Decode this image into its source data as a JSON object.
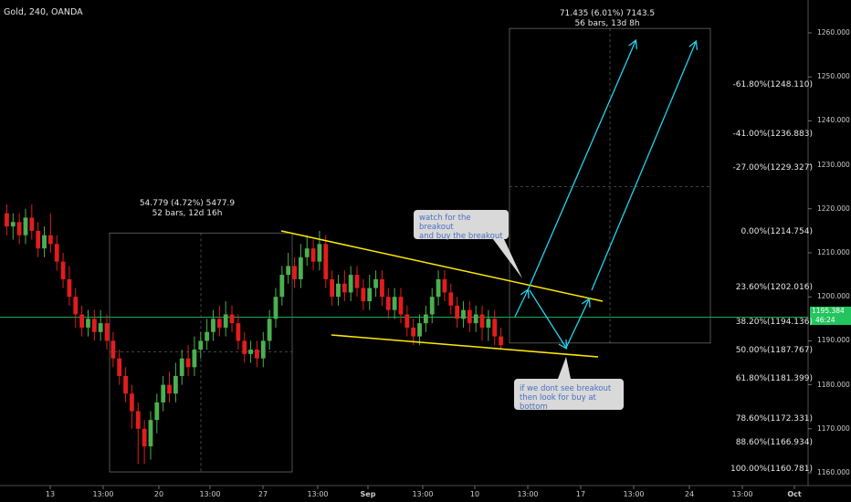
{
  "symbol_label": "Gold, 240, OANDA",
  "colors": {
    "background": "#000000",
    "up_candle": "#4caf50",
    "down_candle": "#e11d1d",
    "trendline": "#ffea00",
    "arrow": "#22d3ee",
    "price_line": "#22c55e",
    "callout_bg": "#d9d9d9",
    "callout_text": "#4a6fc2",
    "measure_box": "#666666"
  },
  "measure_left": {
    "line1": "54.779 (4.72%) 5477.9",
    "line2": "52 bars, 12d 16h"
  },
  "measure_right": {
    "line1": "71.435 (6.01%) 7143.5",
    "line2": "56 bars, 13d 8h"
  },
  "callout_top": {
    "line1": "watch for the breakout",
    "line2": "and buy the breakout"
  },
  "callout_bottom": {
    "line1": "if we dont see breakout",
    "line2": "then look for buy at bottom"
  },
  "fib_levels": [
    {
      "label": "-61.80%(1248.110)",
      "value": 1248.11
    },
    {
      "label": "-41.00%(1236.883)",
      "value": 1236.883
    },
    {
      "label": "-27.00%(1229.327)",
      "value": 1229.327
    },
    {
      "label": "0.00%(1214.754)",
      "value": 1214.754
    },
    {
      "label": "23.60%(1202.016)",
      "value": 1202.016
    },
    {
      "label": "38.20%(1194.136)",
      "value": 1194.136
    },
    {
      "label": "50.00%(1187.767)",
      "value": 1187.767
    },
    {
      "label": "61.80%(1181.399)",
      "value": 1181.399
    },
    {
      "label": "78.60%(1172.331)",
      "value": 1172.331
    },
    {
      "label": "88.60%(1166.934)",
      "value": 1166.934
    },
    {
      "label": "100.00%(1160.781)",
      "value": 1160.781
    }
  ],
  "price_axis": {
    "ticks": [
      "1260.000",
      "1250.000",
      "1240.000",
      "1230.000",
      "1220.000",
      "1210.000",
      "1200.000",
      "1190.000",
      "1180.000",
      "1170.000",
      "1160.000"
    ],
    "current_price": "1195.384",
    "countdown": "46:24"
  },
  "time_axis": {
    "labels": [
      "13",
      "13:00",
      "20",
      "13:00",
      "27",
      "13:00",
      "Sep",
      "13:00",
      "10",
      "13:00",
      "17",
      "13:00",
      "24",
      "13:00",
      "Oct"
    ]
  },
  "chart_data": {
    "type": "candlestick",
    "title": "Gold, 240, OANDA",
    "ylim": [
      1158,
      1265
    ],
    "current_price": 1195.384,
    "candles": [
      [
        1219,
        1216,
        1221,
        1214
      ],
      [
        1216,
        1217,
        1219,
        1213
      ],
      [
        1217,
        1214,
        1219,
        1212
      ],
      [
        1214,
        1218,
        1220,
        1212
      ],
      [
        1218,
        1215,
        1221,
        1213
      ],
      [
        1215,
        1211,
        1217,
        1209
      ],
      [
        1211,
        1214,
        1216,
        1209
      ],
      [
        1214,
        1212,
        1219,
        1210
      ],
      [
        1212,
        1208,
        1214,
        1206
      ],
      [
        1208,
        1204,
        1210,
        1202
      ],
      [
        1204,
        1200,
        1207,
        1198
      ],
      [
        1200,
        1196,
        1202,
        1193
      ],
      [
        1196,
        1193,
        1198,
        1191
      ],
      [
        1193,
        1195,
        1197,
        1191
      ],
      [
        1195,
        1192,
        1197,
        1190
      ],
      [
        1192,
        1194,
        1197,
        1190
      ],
      [
        1194,
        1190,
        1196,
        1188
      ],
      [
        1190,
        1186,
        1192,
        1184
      ],
      [
        1186,
        1182,
        1188,
        1180
      ],
      [
        1182,
        1178,
        1184,
        1176
      ],
      [
        1178,
        1174,
        1180,
        1170
      ],
      [
        1174,
        1170,
        1176,
        1162
      ],
      [
        1170,
        1166,
        1172,
        1162
      ],
      [
        1166,
        1172,
        1174,
        1163
      ],
      [
        1172,
        1176,
        1178,
        1169
      ],
      [
        1176,
        1180,
        1182,
        1174
      ],
      [
        1180,
        1178,
        1183,
        1176
      ],
      [
        1178,
        1182,
        1185,
        1176
      ],
      [
        1182,
        1186,
        1188,
        1180
      ],
      [
        1186,
        1184,
        1189,
        1182
      ],
      [
        1184,
        1188,
        1191,
        1182
      ],
      [
        1188,
        1190,
        1192,
        1186
      ],
      [
        1190,
        1192,
        1195,
        1188
      ],
      [
        1192,
        1195,
        1197,
        1190
      ],
      [
        1195,
        1193,
        1198,
        1191
      ],
      [
        1193,
        1196,
        1199,
        1191
      ],
      [
        1196,
        1194,
        1198,
        1192
      ],
      [
        1194,
        1190,
        1196,
        1188
      ],
      [
        1190,
        1187,
        1192,
        1185
      ],
      [
        1187,
        1188,
        1190,
        1185
      ],
      [
        1188,
        1186,
        1190,
        1184
      ],
      [
        1186,
        1190,
        1192,
        1184
      ],
      [
        1190,
        1195,
        1197,
        1188
      ],
      [
        1195,
        1200,
        1202,
        1193
      ],
      [
        1200,
        1205,
        1207,
        1198
      ],
      [
        1205,
        1207,
        1210,
        1203
      ],
      [
        1207,
        1204,
        1209,
        1202
      ],
      [
        1204,
        1209,
        1212,
        1202
      ],
      [
        1209,
        1211,
        1214,
        1207
      ],
      [
        1211,
        1208,
        1213,
        1206
      ],
      [
        1208,
        1212,
        1215,
        1206
      ],
      [
        1212,
        1204,
        1214,
        1202
      ],
      [
        1204,
        1200,
        1206,
        1198
      ],
      [
        1200,
        1203,
        1205,
        1198
      ],
      [
        1203,
        1201,
        1206,
        1199
      ],
      [
        1201,
        1205,
        1207,
        1199
      ],
      [
        1205,
        1202,
        1207,
        1200
      ],
      [
        1202,
        1199,
        1204,
        1197
      ],
      [
        1199,
        1202,
        1205,
        1197
      ],
      [
        1202,
        1204,
        1206,
        1200
      ],
      [
        1204,
        1200,
        1206,
        1198
      ],
      [
        1200,
        1197,
        1202,
        1195
      ],
      [
        1197,
        1200,
        1202,
        1195
      ],
      [
        1200,
        1196,
        1202,
        1194
      ],
      [
        1196,
        1193,
        1198,
        1191
      ],
      [
        1193,
        1191,
        1195,
        1189
      ],
      [
        1191,
        1194,
        1196,
        1189
      ],
      [
        1194,
        1196,
        1198,
        1192
      ],
      [
        1196,
        1200,
        1202,
        1194
      ],
      [
        1200,
        1204,
        1206,
        1198
      ],
      [
        1204,
        1201,
        1206,
        1199
      ],
      [
        1201,
        1198,
        1203,
        1196
      ],
      [
        1198,
        1195,
        1200,
        1193
      ],
      [
        1195,
        1197,
        1199,
        1193
      ],
      [
        1197,
        1194,
        1199,
        1192
      ],
      [
        1194,
        1196,
        1198,
        1192
      ],
      [
        1196,
        1193,
        1198,
        1190
      ],
      [
        1193,
        1195,
        1197,
        1190
      ],
      [
        1195,
        1191,
        1197,
        1189
      ],
      [
        1191,
        1189,
        1193,
        1188
      ]
    ],
    "price_axis_range": [
      1160,
      1260
    ],
    "fib_levels_pct": [
      "-61.80%",
      "-41.00%",
      "-27.00%",
      "0.00%",
      "23.60%",
      "38.20%",
      "50.00%",
      "61.80%",
      "78.60%",
      "88.60%",
      "100.00%"
    ]
  }
}
